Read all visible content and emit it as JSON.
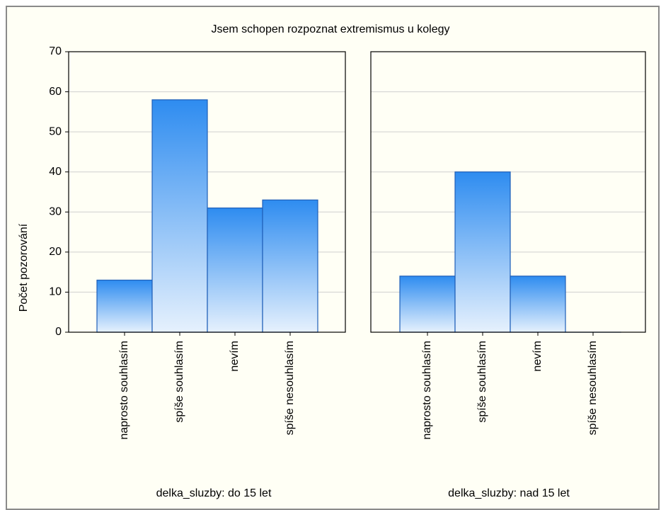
{
  "chart_data": {
    "type": "bar",
    "title": "Jsem schopen rozpoznat extremismus u kolegy",
    "ylabel": "Počet pozorování",
    "ylim": [
      0,
      70
    ],
    "yticks": [
      0,
      10,
      20,
      30,
      40,
      50,
      60,
      70
    ],
    "grid": true,
    "categories": [
      "naprosto souhlasím",
      "spíše souhlasím",
      "nevím",
      "spíše nesouhlasím"
    ],
    "panels": [
      {
        "label": "delka_sluzby: do 15 let",
        "values": [
          13,
          58,
          31,
          33
        ]
      },
      {
        "label": "delka_sluzby: nad 15 let",
        "values": [
          14,
          40,
          14,
          0
        ]
      }
    ],
    "colors": {
      "bar_top": "#2e8cf0",
      "bar_bottom": "#e6f1fd",
      "bar_edge": "#1f5fb8",
      "grid": "#cfcfcf",
      "frame": "#8a8a8a",
      "background": "#fffff5"
    }
  }
}
